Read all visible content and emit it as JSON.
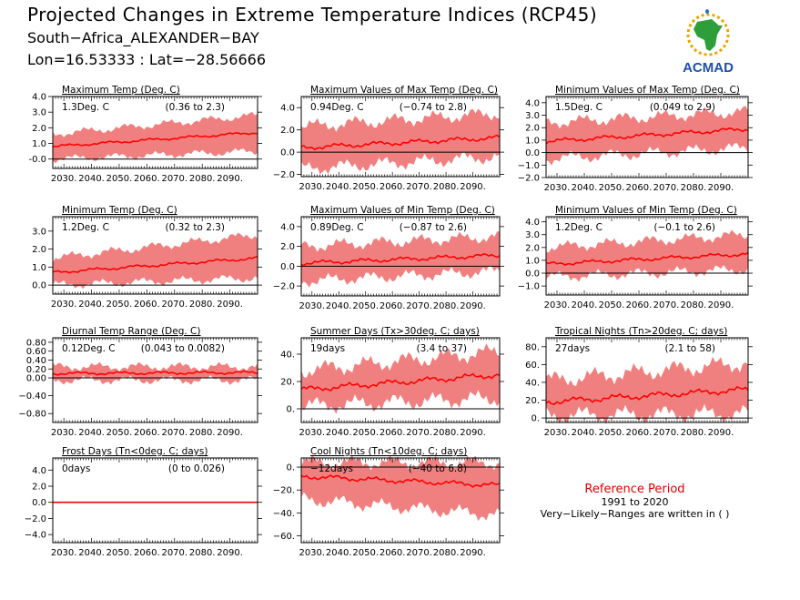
{
  "header": {
    "title": "Projected Changes in Extreme Temperature Indices (RCP45)",
    "station": "South−Africa_ALEXANDER−BAY",
    "coords": "Lon=16.53333 : Lat=−28.56666"
  },
  "logo": {
    "text": "ACMAD",
    "icon": "africa-logo-icon"
  },
  "reference": {
    "title": "Reference Period",
    "years": "1991 to 2020",
    "note": "Very−Likely−Ranges are written in ( )"
  },
  "colors": {
    "band": "#f08080",
    "line": "#ff0000",
    "zero": "#000000",
    "ref_title": "#dd0000"
  },
  "chart_data": [
    {
      "type": "area",
      "title": "Maximum Temp (Deg. C)",
      "mean_label": "1.3Deg. C",
      "range_label": "(0.36 to 2.3)",
      "x_ticks": [
        "2030.",
        "2040.",
        "2050.",
        "2060.",
        "2070.",
        "2080.",
        "2090."
      ],
      "y_ticks": [
        "-0.0",
        "1.0",
        "2.0",
        "3.0",
        "4.0"
      ],
      "y_tick_values": [
        0,
        1,
        2,
        3,
        4
      ],
      "ylim": [
        -0.6,
        4.0
      ],
      "xlim": [
        2026,
        2100
      ],
      "mean_trend": [
        0.8,
        1.7
      ],
      "band": [
        [
          0.0,
          1.6
        ],
        [
          0.5,
          2.8
        ]
      ],
      "wiggle": 0.2
    },
    {
      "type": "area",
      "title": "Maximum Values of Max Temp (Deg. C)",
      "mean_label": "0.94Deg. C",
      "range_label": "(−0.74 to 2.8)",
      "x_ticks": [
        "2030.",
        "2040.",
        "2050.",
        "2060.",
        "2070.",
        "2080.",
        "2090."
      ],
      "y_ticks": [
        "−2.0",
        "0.0",
        "2.0",
        "4.0"
      ],
      "y_tick_values": [
        -2,
        0,
        2,
        4
      ],
      "ylim": [
        -2.2,
        5.0
      ],
      "xlim": [
        2026,
        2100
      ],
      "mean_trend": [
        0.4,
        1.3
      ],
      "band": [
        [
          -1.5,
          2.3
        ],
        [
          -0.4,
          3.5
        ]
      ],
      "wiggle": 0.5
    },
    {
      "type": "area",
      "title": "Minimum Values of Max Temp (Deg. C)",
      "mean_label": "1.5Deg. C",
      "range_label": "(0.049 to 2.9)",
      "x_ticks": [
        "2030.",
        "2040.",
        "2050.",
        "2060.",
        "2070.",
        "2080.",
        "2090."
      ],
      "y_ticks": [
        "−2.0",
        "−1.0",
        "0.0",
        "1.0",
        "2.0",
        "3.0",
        "4.0"
      ],
      "y_tick_values": [
        -2,
        -1,
        0,
        1,
        2,
        3,
        4
      ],
      "ylim": [
        -2.0,
        4.5
      ],
      "xlim": [
        2026,
        2100
      ],
      "mean_trend": [
        0.9,
        1.9
      ],
      "band": [
        [
          -0.5,
          2.4
        ],
        [
          0.4,
          3.3
        ]
      ],
      "wiggle": 0.4
    },
    {
      "type": "area",
      "title": "Minimum Temp (Deg. C)",
      "mean_label": "1.2Deg. C",
      "range_label": "(0.32 to 2.3)",
      "x_ticks": [
        "2030.",
        "2040.",
        "2050.",
        "2060.",
        "2070.",
        "2080.",
        "2090."
      ],
      "y_ticks": [
        "0.0",
        "1.0",
        "2.0",
        "3.0"
      ],
      "y_tick_values": [
        0,
        1,
        2,
        3
      ],
      "ylim": [
        -0.5,
        3.8
      ],
      "xlim": [
        2026,
        2100
      ],
      "mean_trend": [
        0.7,
        1.5
      ],
      "band": [
        [
          0.0,
          1.5
        ],
        [
          0.4,
          2.8
        ]
      ],
      "wiggle": 0.2
    },
    {
      "type": "area",
      "title": "Maximum Values of Min Temp (Deg. C)",
      "mean_label": "0.89Deg. C",
      "range_label": "(−0.87 to 2.6)",
      "x_ticks": [
        "2030.",
        "2040.",
        "2050.",
        "2060.",
        "2070.",
        "2080.",
        "2090."
      ],
      "y_ticks": [
        "−2.0",
        "0.0",
        "2.0",
        "4.0"
      ],
      "y_tick_values": [
        -2,
        0,
        2,
        4
      ],
      "ylim": [
        -3.0,
        5.0
      ],
      "xlim": [
        2026,
        2100
      ],
      "mean_trend": [
        0.3,
        1.1
      ],
      "band": [
        [
          -1.5,
          2.0
        ],
        [
          -0.5,
          3.0
        ]
      ],
      "wiggle": 0.5
    },
    {
      "type": "area",
      "title": "Minimum Values of Min Temp (Deg. C)",
      "mean_label": "1.2Deg. C",
      "range_label": "(−0.1 to 2.6)",
      "x_ticks": [
        "2030.",
        "2040.",
        "2050.",
        "2060.",
        "2070.",
        "2080.",
        "2090."
      ],
      "y_ticks": [
        "−1.0",
        "0.0",
        "1.0",
        "2.0",
        "3.0",
        "4.0"
      ],
      "y_tick_values": [
        -1,
        0,
        1,
        2,
        3,
        4
      ],
      "ylim": [
        -1.7,
        4.4
      ],
      "xlim": [
        2026,
        2100
      ],
      "mean_trend": [
        0.7,
        1.5
      ],
      "band": [
        [
          -0.3,
          2.0
        ],
        [
          0.3,
          3.0
        ]
      ],
      "wiggle": 0.35
    },
    {
      "type": "area",
      "title": "Diurnal Temp Range (Deg. C)",
      "mean_label": "0.12Deg. C",
      "range_label": "(0.043 to 0.0082)",
      "x_ticks": [
        "2030.",
        "2040.",
        "2050.",
        "2060.",
        "2070.",
        "2080.",
        "2090."
      ],
      "y_ticks": [
        "−0.80",
        "−0.40",
        "0.00",
        "0.20",
        "0.40",
        "0.60",
        "0.80"
      ],
      "y_tick_values": [
        -0.8,
        -0.4,
        0,
        0.2,
        0.4,
        0.6,
        0.8
      ],
      "ylim": [
        -1.0,
        0.9
      ],
      "xlim": [
        2026,
        2100
      ],
      "mean_trend": [
        0.1,
        0.12
      ],
      "band": [
        [
          -0.05,
          0.25
        ],
        [
          -0.05,
          0.25
        ]
      ],
      "wiggle": 0.08
    },
    {
      "type": "area",
      "title": "Summer Days (Tx>30deg. C; days)",
      "mean_label": "19days",
      "range_label": "(3.4 to 37)",
      "x_ticks": [
        "2030.",
        "2040.",
        "2050.",
        "2060.",
        "2070.",
        "2080.",
        "2090."
      ],
      "y_ticks": [
        "0.",
        "20.",
        "40."
      ],
      "y_tick_values": [
        0,
        20,
        40
      ],
      "ylim": [
        -10,
        52
      ],
      "xlim": [
        2026,
        2100
      ],
      "mean_trend": [
        14,
        25
      ],
      "band": [
        [
          2,
          28
        ],
        [
          8,
          42
        ]
      ],
      "wiggle": 5
    },
    {
      "type": "area",
      "title": "Tropical Nights (Tn>20deg. C; days)",
      "mean_label": "27days",
      "range_label": "(2.1 to 58)",
      "x_ticks": [
        "2030.",
        "2040.",
        "2050.",
        "2060.",
        "2070.",
        "2080.",
        "2090."
      ],
      "y_ticks": [
        "0.",
        "20.",
        "40.",
        "60.",
        "80."
      ],
      "y_tick_values": [
        0,
        20,
        40,
        60,
        80
      ],
      "ylim": [
        -5,
        90
      ],
      "xlim": [
        2026,
        2100
      ],
      "mean_trend": [
        18,
        32
      ],
      "band": [
        [
          3,
          42
        ],
        [
          5,
          62
        ]
      ],
      "wiggle": 8
    },
    {
      "type": "area",
      "title": "Frost Days (Tn<0deg. C; days)",
      "mean_label": "0days",
      "range_label": "(0 to 0.026)",
      "x_ticks": [
        "2030.",
        "2040.",
        "2050.",
        "2060.",
        "2070.",
        "2080.",
        "2090."
      ],
      "y_ticks": [
        "−4.0",
        "−2.0",
        "0.0",
        "2.0",
        "4.0"
      ],
      "y_tick_values": [
        -4,
        -2,
        0,
        2,
        4
      ],
      "ylim": [
        -5,
        5.5
      ],
      "xlim": [
        2026,
        2100
      ],
      "mean_trend": [
        0,
        0
      ],
      "band": [
        [
          0,
          0.05
        ],
        [
          0,
          0.05
        ]
      ],
      "wiggle": 0
    },
    {
      "type": "area",
      "title": "Cool Nights (Tn<10deg. C; days)",
      "mean_label": "−12days",
      "range_label": "(−40 to 6.8)",
      "x_ticks": [
        "2030.",
        "2040.",
        "2050.",
        "2060.",
        "2070.",
        "2080.",
        "2090."
      ],
      "y_ticks": [
        "−60.",
        "−40.",
        "−20.",
        "0."
      ],
      "y_tick_values": [
        -60,
        -40,
        -20,
        0
      ],
      "ylim": [
        -66,
        8
      ],
      "xlim": [
        2026,
        2100
      ],
      "mean_trend": [
        -8,
        -16
      ],
      "band": [
        [
          -28,
          4
        ],
        [
          -42,
          4
        ]
      ],
      "wiggle": 5
    }
  ]
}
